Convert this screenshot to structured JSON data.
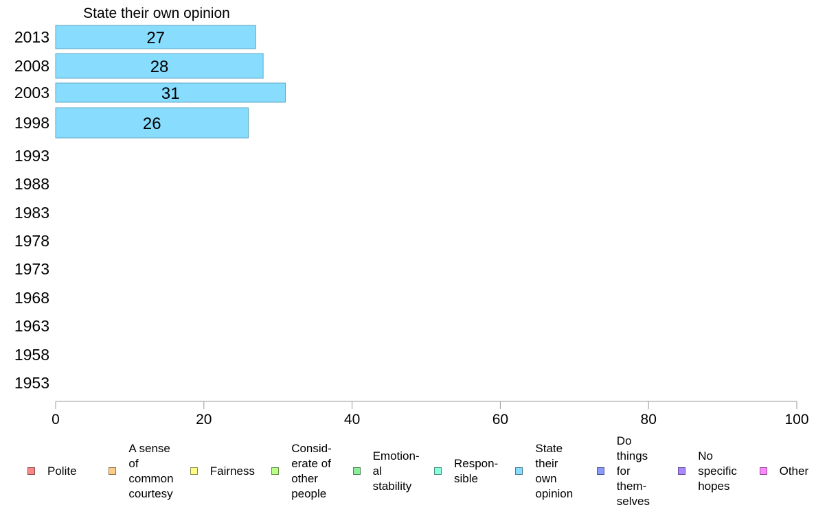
{
  "chart_data": {
    "type": "bar",
    "orientation": "horizontal",
    "title": "State their own opinion",
    "categories": [
      "2013",
      "2008",
      "2003",
      "1998",
      "1993",
      "1988",
      "1983",
      "1978",
      "1973",
      "1968",
      "1963",
      "1958",
      "1953"
    ],
    "series": [
      {
        "name": "State their own opinion",
        "color": "#88ddff",
        "values": [
          27,
          28,
          31,
          26,
          null,
          null,
          null,
          null,
          null,
          null,
          null,
          null,
          null
        ]
      }
    ],
    "data_labels": [
      "27",
      "28",
      "31",
      "26"
    ],
    "xlim": [
      0,
      100
    ],
    "xticks": [
      "0",
      "20",
      "40",
      "60",
      "80",
      "100"
    ],
    "grid": false,
    "legend_placement": "bottom",
    "legend": [
      {
        "label": "Polite",
        "color": "#f88888"
      },
      {
        "label": "A sense\nof\ncommon\ncourtesy",
        "color": "#ffcc88"
      },
      {
        "label": "Fairness",
        "color": "#ffff88"
      },
      {
        "label": "Consid-\nerate of\nother\npeople",
        "color": "#bbff88"
      },
      {
        "label": "Emotion-\nal\nstability",
        "color": "#88ee99"
      },
      {
        "label": "Respon-\nsible",
        "color": "#88ffdd"
      },
      {
        "label": "State\ntheir\nown\nopinion",
        "color": "#88ddff"
      },
      {
        "label": "Do\nthings\nfor\nthem-\nselves",
        "color": "#8899ff"
      },
      {
        "label": "No\nspecific\nhopes",
        "color": "#aa88ff"
      },
      {
        "label": "Other",
        "color": "#ff88ff"
      }
    ]
  }
}
